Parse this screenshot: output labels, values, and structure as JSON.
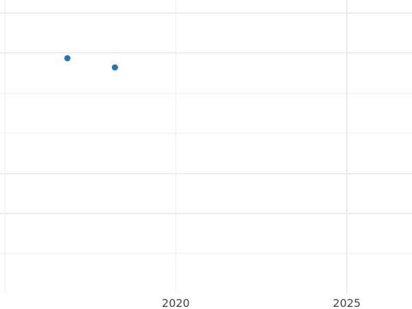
{
  "chart_data": {
    "type": "scatter",
    "title": "",
    "xlabel": "",
    "ylabel": "",
    "xlim": [
      2015.0,
      2026.9
    ],
    "ylim": [
      0,
      7.3
    ],
    "x_ticks": [
      "2020",
      "2025"
    ],
    "x_tick_values": [
      2020,
      2025
    ],
    "grid": true,
    "point_color": "#1f77b4",
    "points": [
      {
        "x": 2016.83,
        "y": 5.86
      },
      {
        "x": 2018.22,
        "y": 5.63
      }
    ]
  }
}
